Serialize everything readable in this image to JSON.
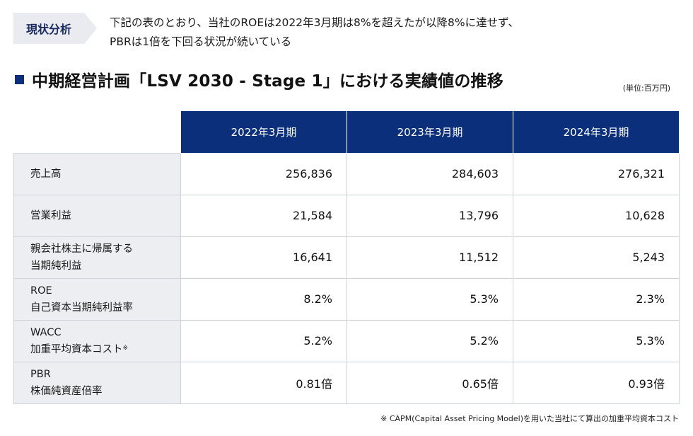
{
  "tag": "現状分析",
  "summary": {
    "line1": "下記の表のとおり、当社のROEは2022年3月期は8%を超えたが以降8%に達せず、",
    "line2": "PBRは1倍を下回る状況が続いている"
  },
  "section_title": "中期経営計画「LSV 2030 - Stage 1」における実績値の推移",
  "unit_note": "(単位:百万円)",
  "table": {
    "columns": [
      "2022年3月期",
      "2023年3月期",
      "2024年3月期"
    ],
    "rows": [
      {
        "label": [
          "売上高"
        ],
        "values": [
          "256,836",
          "284,603",
          "276,321"
        ]
      },
      {
        "label": [
          "営業利益"
        ],
        "values": [
          "21,584",
          "13,796",
          "10,628"
        ]
      },
      {
        "label": [
          "親会社株主に帰属する",
          "当期純利益"
        ],
        "values": [
          "16,641",
          "11,512",
          "5,243"
        ]
      },
      {
        "label": [
          "ROE",
          "自己資本当期純利益率"
        ],
        "values": [
          "8.2%",
          "5.3%",
          "2.3%"
        ]
      },
      {
        "label": [
          "WACC",
          "加重平均資本コスト"
        ],
        "label_mark": "※",
        "values": [
          "5.2%",
          "5.2%",
          "5.3%"
        ]
      },
      {
        "label": [
          "PBR",
          "株価純資産倍率"
        ],
        "values": [
          "0.81倍",
          "0.65倍",
          "0.93倍"
        ]
      }
    ]
  },
  "footnote": "※ CAPM(Capital Asset Pricing Model)を用いた当社にて算出の加重平均資本コスト",
  "colors": {
    "header_bg": "#0b2f7a",
    "label_bg": "#eceef2",
    "tag_bg": "#e9ebf0"
  }
}
